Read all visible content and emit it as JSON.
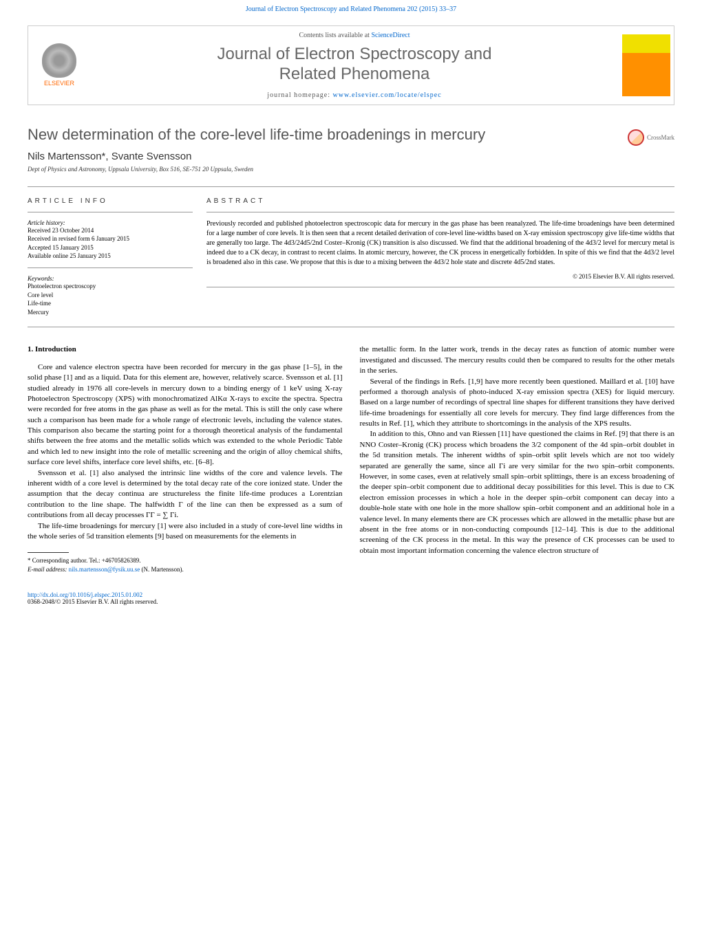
{
  "header": {
    "journal_ref": "Journal of Electron Spectroscopy and Related Phenomena 202 (2015) 33–37"
  },
  "journal_box": {
    "elsevier_label": "ELSEVIER",
    "contents_prefix": "Contents lists available at ",
    "contents_link": "ScienceDirect",
    "journal_title_line1": "Journal of Electron Spectroscopy and",
    "journal_title_line2": "Related Phenomena",
    "homepage_prefix": "journal homepage: ",
    "homepage_link": "www.elsevier.com/locate/elspec"
  },
  "article": {
    "title": "New determination of the core-level life-time broadenings in mercury",
    "crossmark_label": "CrossMark",
    "authors": "Nils Martensson*, Svante Svensson",
    "affiliation": "Dept of Physics and Astronomy, Uppsala University, Box 516, SE-751 20 Uppsala, Sweden"
  },
  "article_info": {
    "heading": "ARTICLE INFO",
    "history_label": "Article history:",
    "received": "Received 23 October 2014",
    "revised": "Received in revised form 6 January 2015",
    "accepted": "Accepted 15 January 2015",
    "online": "Available online 25 January 2015",
    "keywords_label": "Keywords:",
    "keywords": [
      "Photoelectron spectroscopy",
      "Core level",
      "Life-time",
      "Mercury"
    ]
  },
  "abstract": {
    "heading": "ABSTRACT",
    "text": "Previously recorded and published photoelectron spectroscopic data for mercury in the gas phase has been reanalyzed. The life-time broadenings have been determined for a large number of core levels. It is then seen that a recent detailed derivation of core-level line-widths based on X-ray emission spectroscopy give life-time widths that are generally too large. The 4d3/24d5/2nd Coster–Kronig (CK) transition is also discussed. We find that the additional broadening of the 4d3/2 level for mercury metal is indeed due to a CK decay, in contrast to recent claims. In atomic mercury, however, the CK process in energetically forbidden. In spite of this we find that the 4d3/2 level is broadened also in this case. We propose that this is due to a mixing between the 4d3/2 hole state and discrete 4d5/2nd states.",
    "copyright": "© 2015 Elsevier B.V. All rights reserved."
  },
  "body": {
    "section_number": "1.",
    "section_title": "Introduction",
    "col1_p1": "Core and valence electron spectra have been recorded for mercury in the gas phase [1–5], in the solid phase [1] and as a liquid. Data for this element are, however, relatively scarce. Svensson et al. [1] studied already in 1976 all core-levels in mercury down to a binding energy of 1 keV using X-ray Photoelectron Spectroscopy (XPS) with monochromatized AlKα X-rays to excite the spectra. Spectra were recorded for free atoms in the gas phase as well as for the metal. This is still the only case where such a comparison has been made for a whole range of electronic levels, including the valence states. This comparison also became the starting point for a thorough theoretical analysis of the fundamental shifts between the free atoms and the metallic solids which was extended to the whole Periodic Table and which led to new insight into the role of metallic screening and the origin of alloy chemical shifts, surface core level shifts, interface core level shifts, etc. [6–8].",
    "col1_p2": "Svensson et al. [1] also analysed the intrinsic line widths of the core and valence levels. The inherent width of a core level is determined by the total decay rate of the core ionized state. Under the assumption that the decay continua are structureless the finite life-time produces a Lorentzian contribution to the line shape. The halfwidth Γ of the line can then be expressed as a sum of contributions from all decay processes ΓΓ = ∑ Γi.",
    "col1_p3": "The life-time broadenings for mercury [1] were also included in a study of core-level line widths in the whole series of 5d transition elements [9] based on measurements for the elements in",
    "col2_p1": "the metallic form. In the latter work, trends in the decay rates as function of atomic number were investigated and discussed. The mercury results could then be compared to results for the other metals in the series.",
    "col2_p2": "Several of the findings in Refs. [1,9] have more recently been questioned. Maillard et al. [10] have performed a thorough analysis of photo-induced X-ray emission spectra (XES) for liquid mercury. Based on a large number of recordings of spectral line shapes for different transitions they have derived life-time broadenings for essentially all core levels for mercury. They find large differences from the results in Ref. [1], which they attribute to shortcomings in the analysis of the XPS results.",
    "col2_p3": "In addition to this, Ohno and van Riessen [11] have questioned the claims in Ref. [9] that there is an NNO Coster–Kronig (CK) process which broadens the 3/2 component of the 4d spin–orbit doublet in the 5d transition metals. The inherent widths of spin–orbit split levels which are not too widely separated are generally the same, since all Γi are very similar for the two spin–orbit components. However, in some cases, even at relatively small spin–orbit splittings, there is an excess broadening of the deeper spin–orbit component due to additional decay possibilities for this level. This is due to CK electron emission processes in which a hole in the deeper spin–orbit component can decay into a double-hole state with one hole in the more shallow spin–orbit component and an additional hole in a valence level. In many elements there are CK processes which are allowed in the metallic phase but are absent in the free atoms or in non-conducting compounds [12–14]. This is due to the additional screening of the CK process in the metal. In this way the presence of CK processes can be used to obtain most important information concerning the valence electron structure of"
  },
  "footnote": {
    "corr_author": "* Corresponding author. Tel.: +46705826389.",
    "email_label": "E-mail address: ",
    "email": "nils.martensson@fysik.uu.se",
    "email_suffix": " (N. Martensson)."
  },
  "footer": {
    "doi": "http://dx.doi.org/10.1016/j.elspec.2015.01.002",
    "issn_copyright": "0368-2048/© 2015 Elsevier B.V. All rights reserved."
  },
  "colors": {
    "link": "#0066cc",
    "text": "#000000",
    "title_gray": "#555555",
    "elsevier_orange": "#ff6600"
  }
}
